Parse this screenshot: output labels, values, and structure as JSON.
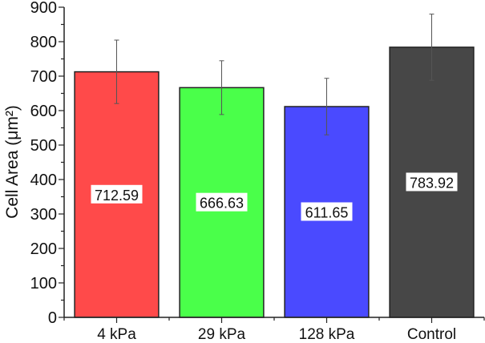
{
  "chart_data": {
    "type": "bar",
    "title": "",
    "xlabel": "",
    "ylabel": "Cell Area (μm²)",
    "ylim": [
      0,
      900
    ],
    "yticks": [
      0,
      100,
      200,
      300,
      400,
      500,
      600,
      700,
      800,
      900
    ],
    "grid": false,
    "categories": [
      "4 kPa",
      "29 kPa",
      "128 kPa",
      "Control"
    ],
    "values": [
      712.59,
      666.63,
      611.65,
      783.92
    ],
    "value_labels": [
      "712.59",
      "666.63",
      "611.65",
      "783.92"
    ],
    "errors": [
      92,
      78,
      82,
      96
    ],
    "colors": [
      "#ff4a4a",
      "#4aff4a",
      "#4a4aff",
      "#474747"
    ]
  }
}
